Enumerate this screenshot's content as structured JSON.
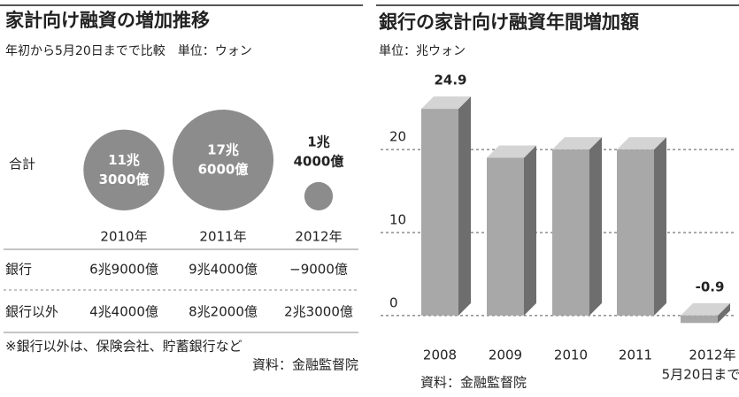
{
  "chart_data": [
    {
      "type": "bubble",
      "title": "家計向け融資の増加推移",
      "subtitle": "年初から5月20日までで比較　単位：ウォン",
      "row_label": "合計",
      "categories": [
        "2010年",
        "2011年",
        "2012年"
      ],
      "values": [
        113000,
        176000,
        14000
      ],
      "value_labels": [
        [
          "11兆",
          "3000億"
        ],
        [
          "17兆",
          "6000億"
        ],
        [
          "1兆",
          "4000億"
        ]
      ],
      "color": "#8c8c8c",
      "table": {
        "rows": [
          [
            "銀行",
            "6兆9000億",
            "9兆4000億",
            "−9000億"
          ],
          [
            "銀行以外",
            "4兆4000億",
            "8兆2000億",
            "2兆3000億"
          ]
        ]
      },
      "note": "※銀行以外は、保険会社、貯蓄銀行など",
      "source": "資料：金融監督院"
    },
    {
      "type": "bar3d",
      "title": "銀行の家計向け融資年間増加額",
      "subtitle": "単位：兆ウォン",
      "categories": [
        "2008",
        "2009",
        "2010",
        "2011",
        [
          "2012年",
          "5月20日まで"
        ]
      ],
      "values": [
        24.9,
        19,
        20,
        20,
        -0.9
      ],
      "value_labels": [
        "24.9",
        null,
        null,
        null,
        "-0.9"
      ],
      "color": "#a8a8a8",
      "ylim": [
        -3,
        28
      ],
      "yticks": [
        0,
        10,
        20
      ],
      "grid": true,
      "source": "資料：金融監督院"
    }
  ]
}
